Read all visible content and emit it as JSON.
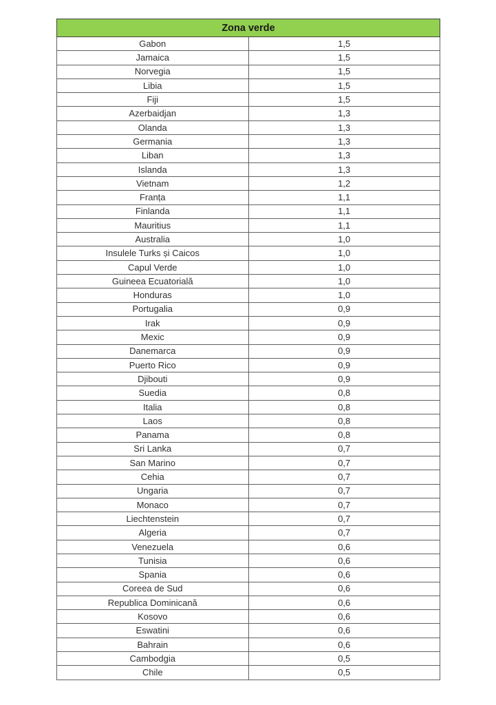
{
  "page": {
    "background_color": "#ffffff"
  },
  "table": {
    "header": {
      "title": "Zona verde",
      "background_color": "#92d050",
      "text_color": "#1a1a1a"
    },
    "border_color": "#616161",
    "columns": [
      "country",
      "value"
    ],
    "rows": [
      {
        "country": "Gabon",
        "value": "1,5"
      },
      {
        "country": "Jamaica",
        "value": "1,5"
      },
      {
        "country": "Norvegia",
        "value": "1,5"
      },
      {
        "country": "Libia",
        "value": "1,5"
      },
      {
        "country": "Fiji",
        "value": "1,5"
      },
      {
        "country": "Azerbaidjan",
        "value": "1,3"
      },
      {
        "country": "Olanda",
        "value": "1,3"
      },
      {
        "country": "Germania",
        "value": "1,3"
      },
      {
        "country": "Liban",
        "value": "1,3"
      },
      {
        "country": "Islanda",
        "value": "1,3"
      },
      {
        "country": "Vietnam",
        "value": "1,2"
      },
      {
        "country": "Franța",
        "value": "1,1"
      },
      {
        "country": "Finlanda",
        "value": "1,1"
      },
      {
        "country": "Mauritius",
        "value": "1,1"
      },
      {
        "country": "Australia",
        "value": "1,0"
      },
      {
        "country": "Insulele Turks și Caicos",
        "value": "1,0"
      },
      {
        "country": "Capul Verde",
        "value": "1,0"
      },
      {
        "country": "Guineea Ecuatorială",
        "value": "1,0"
      },
      {
        "country": "Honduras",
        "value": "1,0"
      },
      {
        "country": "Portugalia",
        "value": "0,9"
      },
      {
        "country": "Irak",
        "value": "0,9"
      },
      {
        "country": "Mexic",
        "value": "0,9"
      },
      {
        "country": "Danemarca",
        "value": "0,9"
      },
      {
        "country": "Puerto Rico",
        "value": "0,9"
      },
      {
        "country": "Djibouti",
        "value": "0,9"
      },
      {
        "country": "Suedia",
        "value": "0,8"
      },
      {
        "country": "Italia",
        "value": "0,8"
      },
      {
        "country": "Laos",
        "value": "0,8"
      },
      {
        "country": "Panama",
        "value": "0,8"
      },
      {
        "country": "Sri Lanka",
        "value": "0,7"
      },
      {
        "country": "San Marino",
        "value": "0,7"
      },
      {
        "country": "Cehia",
        "value": "0,7"
      },
      {
        "country": "Ungaria",
        "value": "0,7"
      },
      {
        "country": "Monaco",
        "value": "0,7"
      },
      {
        "country": "Liechtenstein",
        "value": "0,7"
      },
      {
        "country": "Algeria",
        "value": "0,7"
      },
      {
        "country": "Venezuela",
        "value": "0,6"
      },
      {
        "country": "Tunisia",
        "value": "0,6"
      },
      {
        "country": "Spania",
        "value": "0,6"
      },
      {
        "country": "Coreea de Sud",
        "value": "0,6"
      },
      {
        "country": "Republica Dominicană",
        "value": "0,6"
      },
      {
        "country": "Kosovo",
        "value": "0,6"
      },
      {
        "country": "Eswatini",
        "value": "0,6"
      },
      {
        "country": "Bahrain",
        "value": "0,6"
      },
      {
        "country": "Cambodgia",
        "value": "0,5"
      },
      {
        "country": "Chile",
        "value": "0,5"
      }
    ]
  }
}
